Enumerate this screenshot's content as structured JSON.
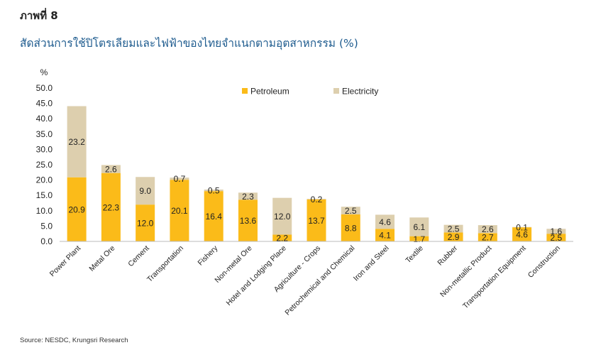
{
  "figure_label": "ภาพที่ 8",
  "title": "สัดส่วนการใช้ปิโตรเลียมและไฟฟ้าของไทยจำแนกตามอุตสาหกรรม (%)",
  "source": "Source: NESDC, Krungsri Research",
  "chart_data": {
    "type": "bar",
    "stacked": true,
    "title": "สัดส่วนการใช้ปิโตรเลียมและไฟฟ้าของไทยจำแนกตามอุตสาหกรรม (%)",
    "ylabel": "%",
    "xlabel": "",
    "ylim": [
      0,
      50
    ],
    "yticks": [
      "0.0",
      "5.0",
      "10.0",
      "15.0",
      "20.0",
      "25.0",
      "30.0",
      "35.0",
      "40.0",
      "45.0",
      "50.0"
    ],
    "legend_position": "top-right",
    "categories": [
      "Power Plant",
      "Metal Ore",
      "Cement",
      "Transportation",
      "Fishery",
      "Non-metal Ore",
      "Hotel and Lodging Place",
      "Agriculture - Crops",
      "Petrochemical and Chemical",
      "Iron and Steel",
      "Textile",
      "Rubber",
      "Non-metallic Product",
      "Transportation Equipment",
      "Construction"
    ],
    "series": [
      {
        "name": "Petroleum",
        "color": "#fbbb19",
        "values": [
          20.9,
          22.3,
          12.0,
          20.1,
          16.4,
          13.6,
          2.2,
          13.7,
          8.8,
          4.1,
          1.7,
          2.9,
          2.7,
          4.6,
          2.5
        ],
        "labels": [
          "20.9",
          "22.3",
          "12.0",
          "20.1",
          "16.4",
          "13.6",
          "2.2",
          "13.7",
          "8.8",
          "4.1",
          "1.7",
          "2.9",
          "2.7",
          "4.6",
          "2.5"
        ]
      },
      {
        "name": "Electricity",
        "color": "#ddcfae",
        "values": [
          23.2,
          2.6,
          9.0,
          0.7,
          0.5,
          2.3,
          12.0,
          0.2,
          2.5,
          4.6,
          6.1,
          2.5,
          2.6,
          0.1,
          1.6
        ],
        "labels": [
          "23.2",
          "2.6",
          "9.0",
          "0.7",
          "0.5",
          "2.3",
          "12.0",
          "0.2",
          "2.5",
          "4.6",
          "6.1",
          "2.5",
          "2.6",
          "0.1",
          "1.6"
        ]
      }
    ]
  }
}
